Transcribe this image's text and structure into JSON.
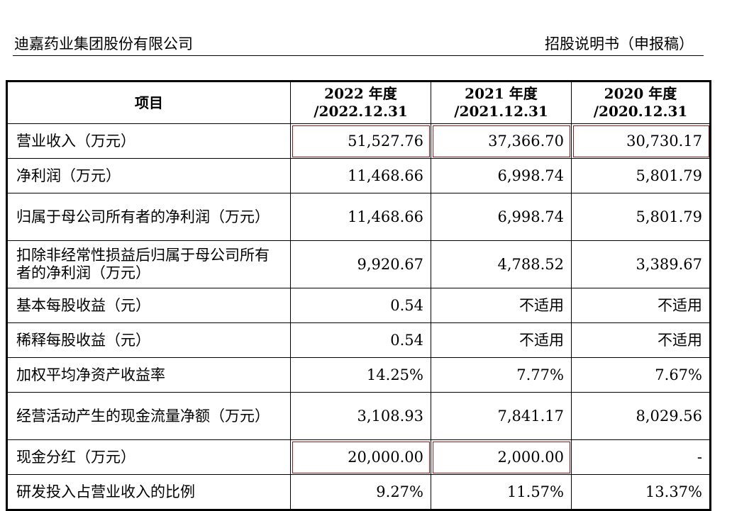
{
  "header": {
    "company": "迪嘉药业集团股份有限公司",
    "document": "招股说明书（申报稿）"
  },
  "table": {
    "columns": [
      {
        "line1": "项目",
        "line2": ""
      },
      {
        "line1": "2022 年度",
        "line2": "/2022.12.31"
      },
      {
        "line1": "2021 年度",
        "line2": "/2021.12.31"
      },
      {
        "line1": "2020 年度",
        "line2": "/2020.12.31"
      }
    ],
    "rows": [
      {
        "label": "营业收入（万元）",
        "v2022": "51,527.76",
        "v2021": "37,366.70",
        "v2020": "30,730.17"
      },
      {
        "label": "净利润（万元）",
        "v2022": "11,468.66",
        "v2021": "6,998.74",
        "v2020": "5,801.79"
      },
      {
        "label": "归属于母公司所有者的净利润（万元）",
        "v2022": "11,468.66",
        "v2021": "6,998.74",
        "v2020": "5,801.79"
      },
      {
        "label": "扣除非经常性损益后归属于母公司所有者的净利润（万元）",
        "v2022": "9,920.67",
        "v2021": "4,788.52",
        "v2020": "3,389.67"
      },
      {
        "label": "基本每股收益（元）",
        "v2022": "0.54",
        "v2021": "不适用",
        "v2020": "不适用"
      },
      {
        "label": "稀释每股收益（元）",
        "v2022": "0.54",
        "v2021": "不适用",
        "v2020": "不适用"
      },
      {
        "label": "加权平均净资产收益率",
        "v2022": "14.25%",
        "v2021": "7.77%",
        "v2020": "7.67%"
      },
      {
        "label": "经营活动产生的现金流量净额（万元）",
        "v2022": "3,108.93",
        "v2021": "7,841.17",
        "v2020": "8,029.56"
      },
      {
        "label": "现金分红（万元）",
        "v2022": "20,000.00",
        "v2021": "2,000.00",
        "v2020": "-"
      },
      {
        "label": "研发投入占营业收入的比例",
        "v2022": "9.27%",
        "v2021": "11.57%",
        "v2020": "13.37%"
      }
    ]
  }
}
